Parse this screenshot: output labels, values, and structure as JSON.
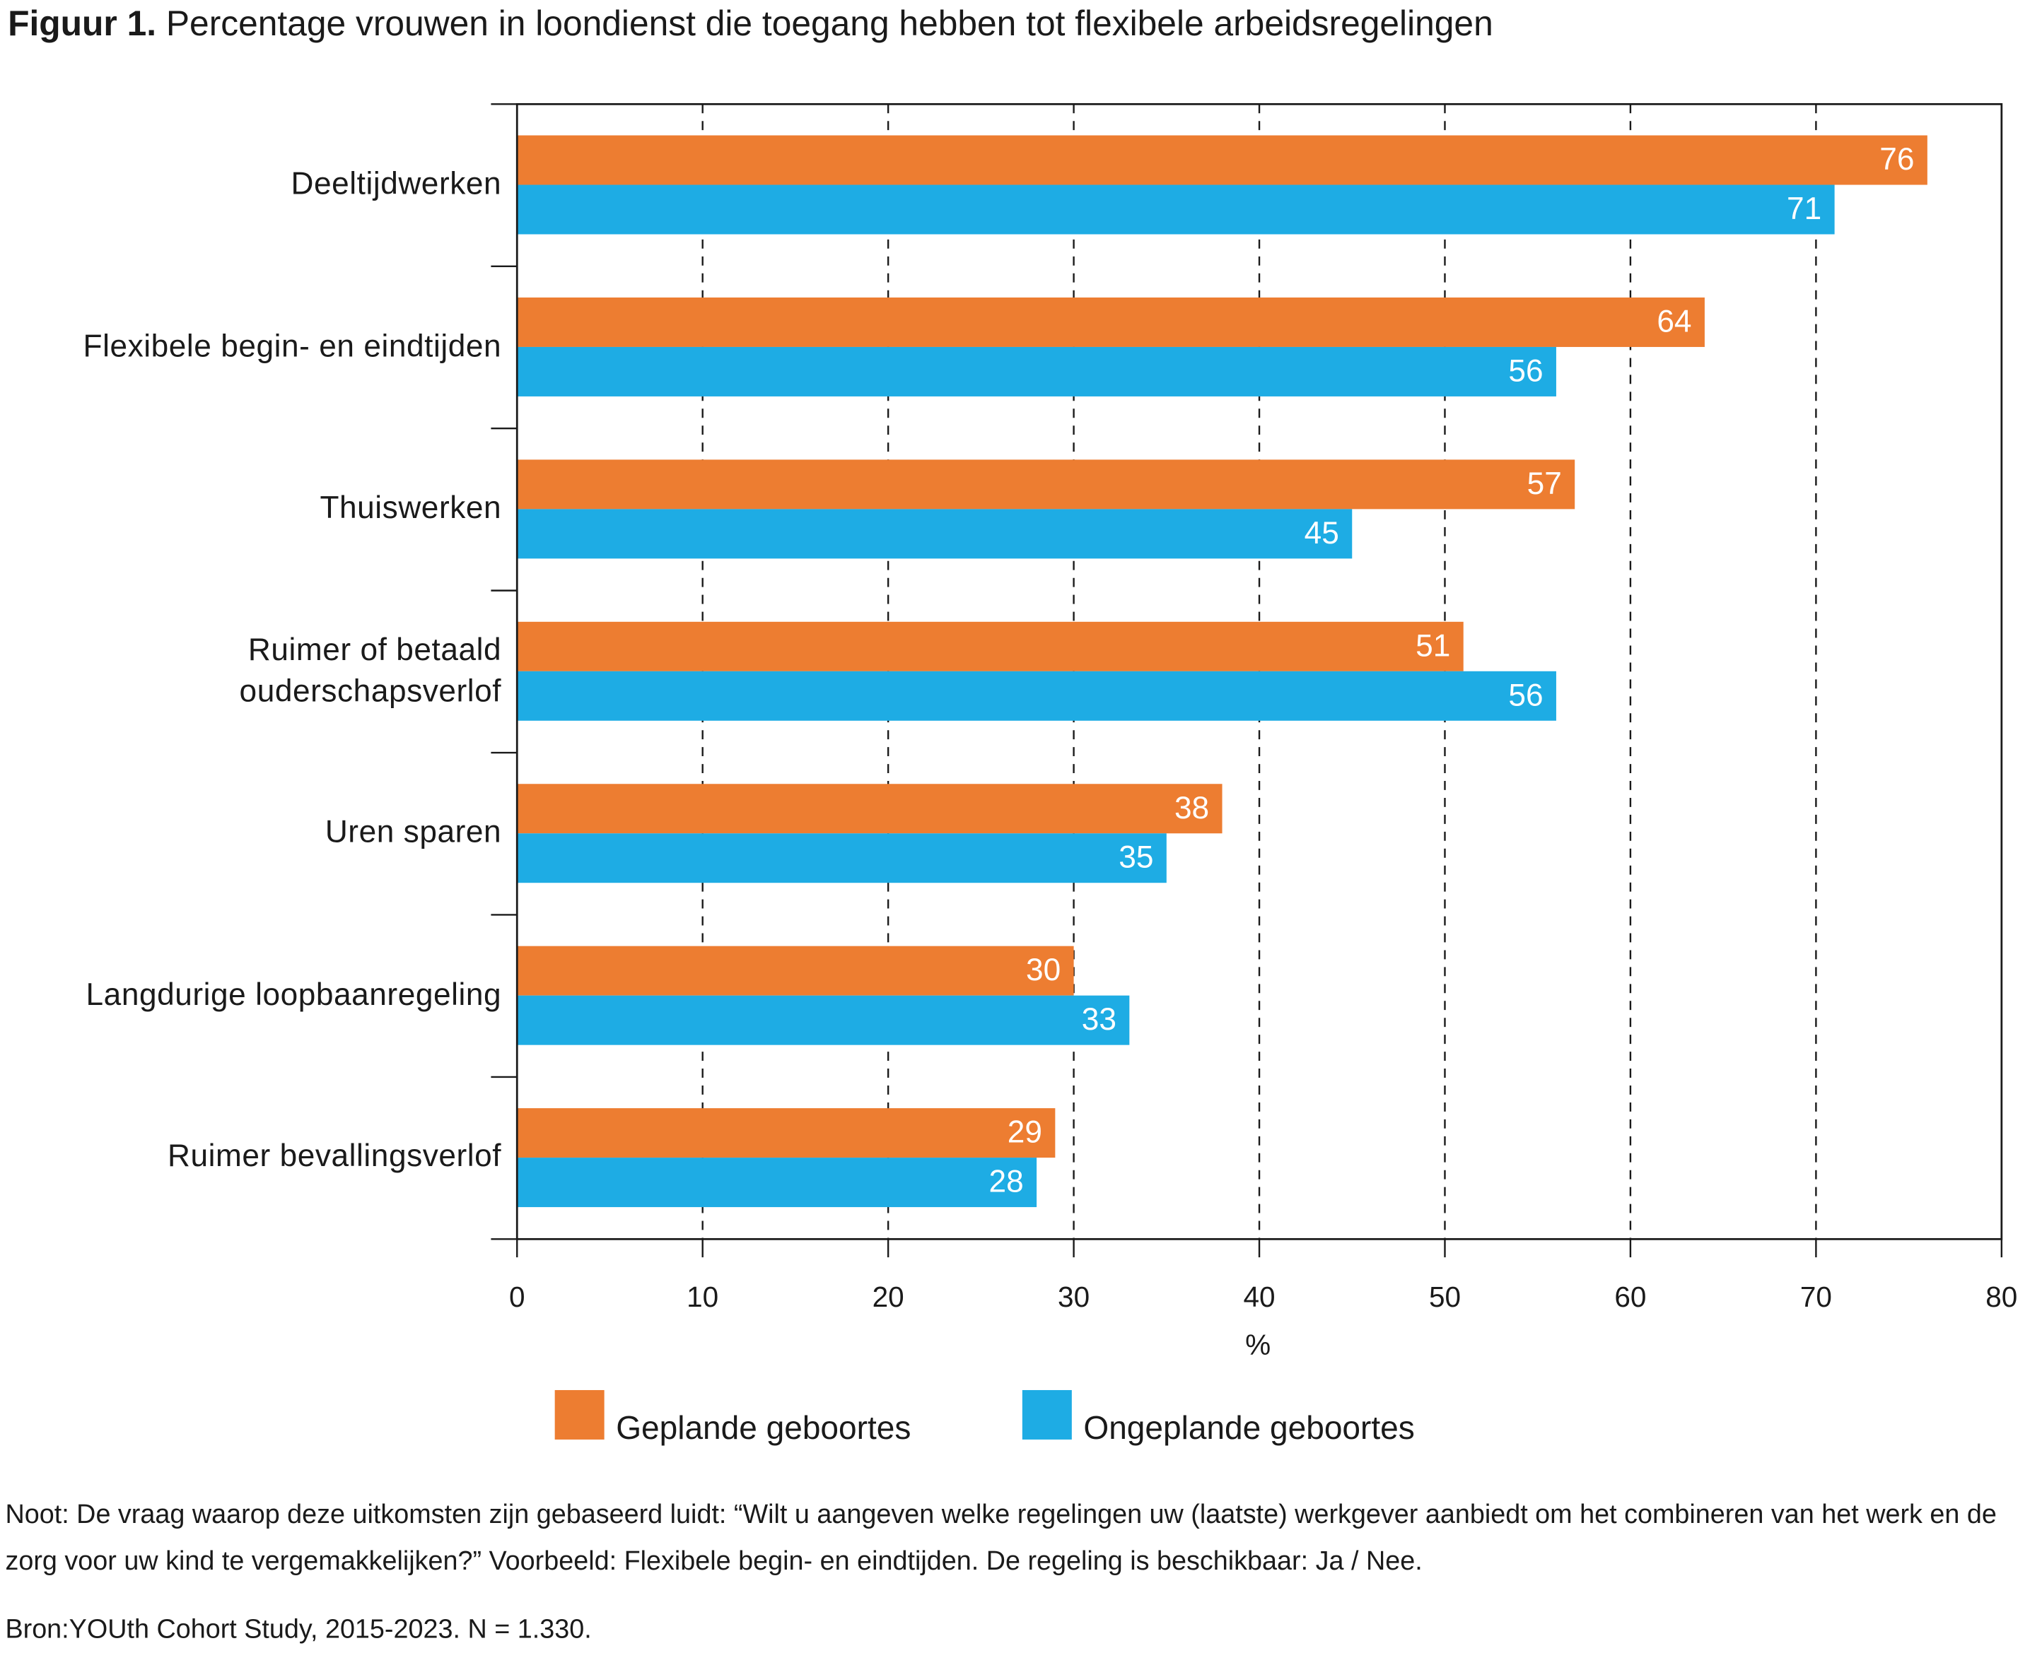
{
  "chart_data": {
    "type": "barh",
    "title_label": "Figuur 1.",
    "title": "Percentage vrouwen in loondienst die toegang hebben tot flexibele arbeidsregelingen",
    "categories": [
      "Deeltijdwerken",
      "Flexibele begin- en eindtijden",
      "Thuiswerken",
      "Ruimer of betaald\nouderschapsverlof",
      "Uren sparen",
      "Langdurige loopbaanregeling",
      "Ruimer bevallingsverlof"
    ],
    "series": [
      {
        "name": "Geplande geboortes",
        "color": "#ed7d31",
        "values": [
          76,
          64,
          57,
          51,
          38,
          30,
          29
        ]
      },
      {
        "name": "Ongeplande geboortes",
        "color": "#1eace4",
        "values": [
          71,
          56,
          45,
          56,
          35,
          33,
          28
        ]
      }
    ],
    "xlim": [
      0,
      80
    ],
    "xticks": [
      0,
      10,
      20,
      30,
      40,
      50,
      60,
      70,
      80
    ],
    "xlabel": "%",
    "grid": true,
    "note": "Noot: De vraag waarop deze uitkomsten zijn gebaseerd luidt: “Wilt u aangeven welke regelingen uw (laatste) werkgever aanbiedt om het combineren van het werk en de zorg voor uw kind te vergemakkelijken?” Voorbeeld: Flexibele begin- en eindtijden. De regeling is beschikbaar: Ja / Nee.",
    "source": "Bron:YOUth Cohort Study, 2015-2023. N = 1.330."
  }
}
